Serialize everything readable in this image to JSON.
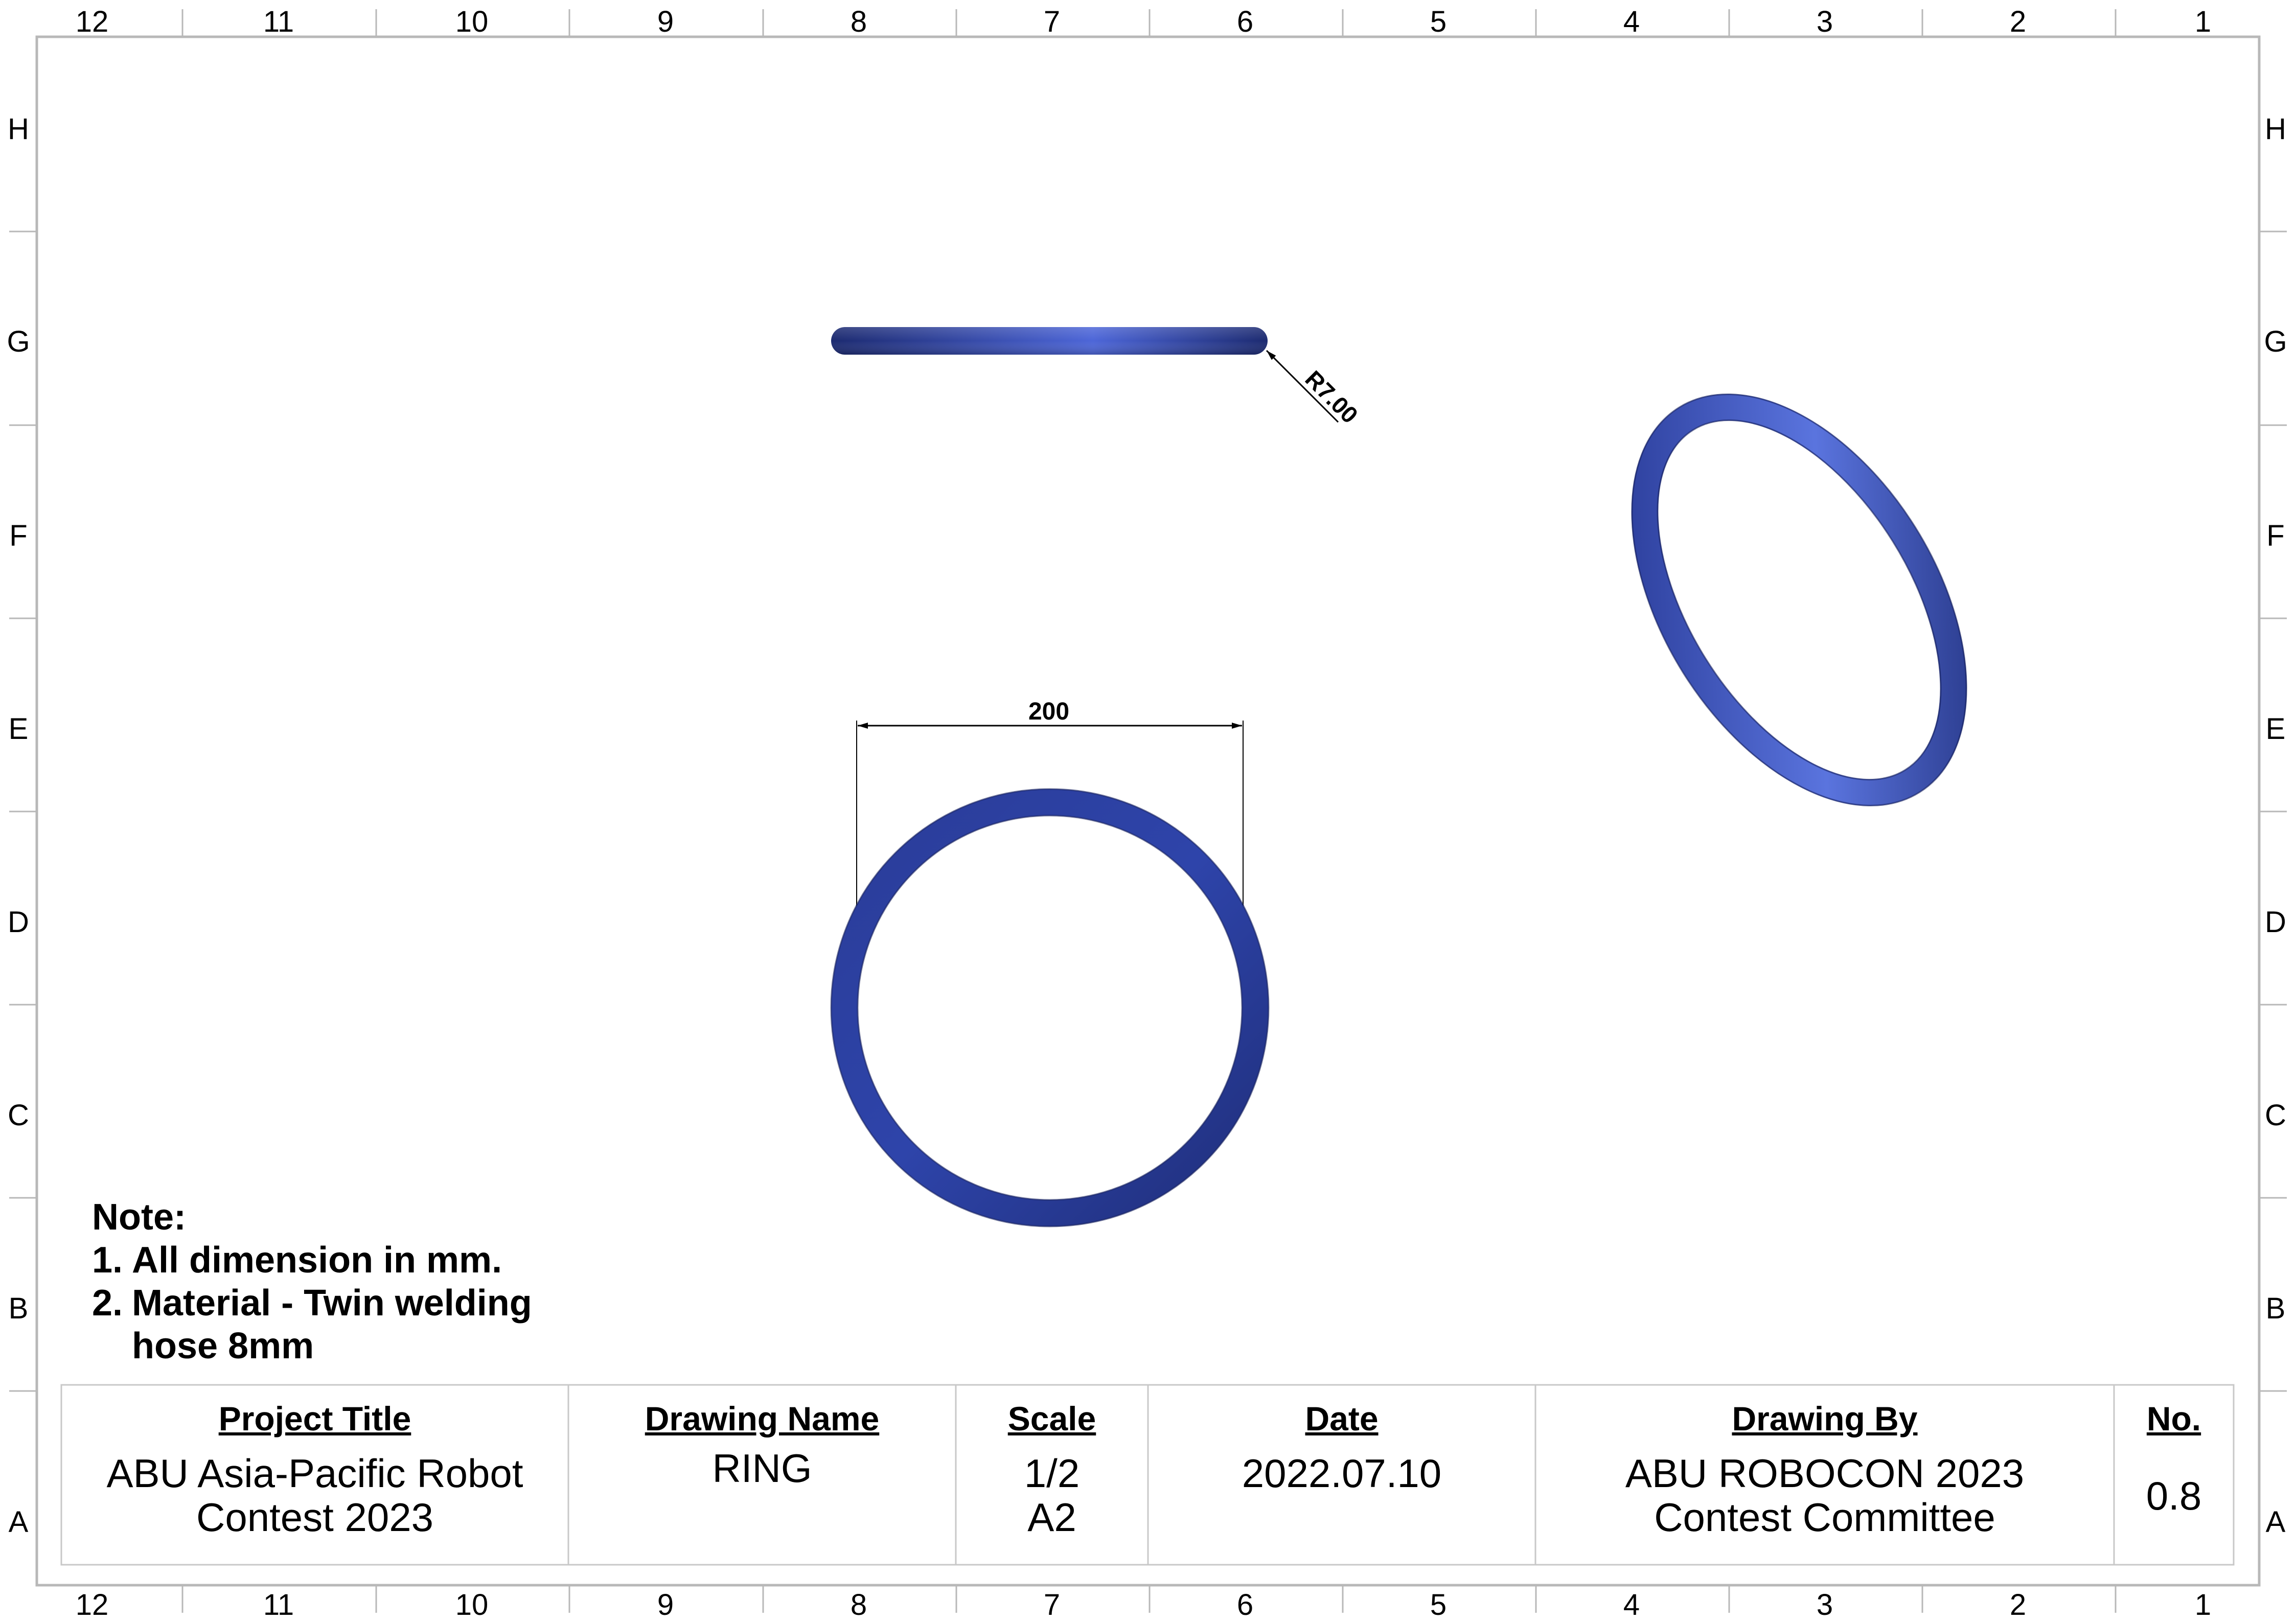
{
  "border": {
    "columns_top": [
      "12",
      "11",
      "10",
      "9",
      "8",
      "7",
      "6",
      "5",
      "4",
      "3",
      "2",
      "1"
    ],
    "columns_bottom": [
      "12",
      "11",
      "10",
      "9",
      "8",
      "7",
      "6",
      "5",
      "4",
      "3",
      "2",
      "1"
    ],
    "rows_left": [
      "H",
      "G",
      "F",
      "E",
      "D",
      "C",
      "B",
      "A"
    ],
    "rows_right": [
      "H",
      "G",
      "F",
      "E",
      "D",
      "C",
      "B",
      "A"
    ]
  },
  "views": {
    "dimension_width": "200",
    "dimension_radius": "R7.00"
  },
  "note": {
    "title": "Note:",
    "items": [
      {
        "num": "1.",
        "text": "All dimension in mm."
      },
      {
        "num": "2.",
        "text": "Material - Twin welding hose 8mm"
      }
    ]
  },
  "title_block": {
    "project_title_label": "Project Title",
    "project_title_value_1": "ABU Asia-Pacific Robot",
    "project_title_value_2": "Contest 2023",
    "drawing_name_label": "Drawing Name",
    "drawing_name_value": "RING",
    "scale_label": "Scale",
    "scale_value_1": "1/2",
    "scale_value_2": "A2",
    "date_label": "Date",
    "date_value": "2022.07.10",
    "drawing_by_label": "Drawing By",
    "drawing_by_value_1": "ABU ROBOCON 2023",
    "drawing_by_value_2": "Contest Committee",
    "no_label": "No.",
    "no_value": "0.8"
  },
  "colors": {
    "ring_dark": "#1f2e7a",
    "ring_mid": "#2f45a8",
    "ring_light": "#6f86e6",
    "line": "#000000",
    "grid_line": "#b0b0b0"
  }
}
